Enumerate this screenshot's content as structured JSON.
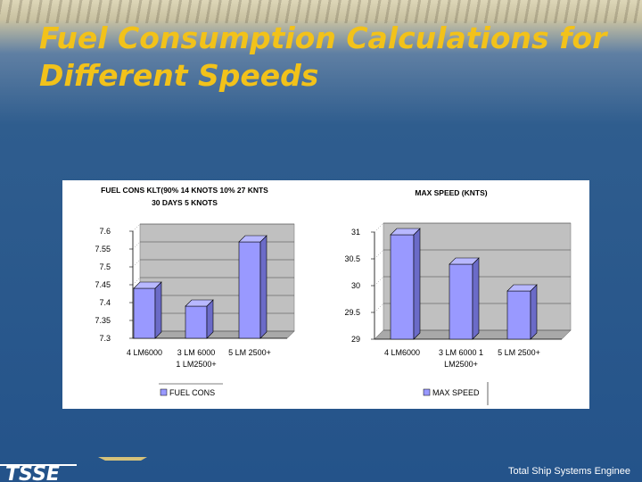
{
  "slide": {
    "title": "Fuel Consumption Calculations for\nDifferent Speeds",
    "footer": "Total Ship Systems Enginee",
    "logo_text": "TSSE"
  },
  "chart_data": [
    {
      "type": "bar",
      "title_line1": "FUEL CONS KLT(90% 14 KNOTS 10% 27 KNTS",
      "title_line2": "30 DAYS 5 KNOTS",
      "categories": [
        [
          "4 LM6000"
        ],
        [
          "3 LM 6000",
          "1 LM2500+"
        ],
        [
          "5 LM 2500+"
        ]
      ],
      "series": [
        {
          "name": "FUEL CONS",
          "values": [
            7.44,
            7.39,
            7.57
          ]
        }
      ],
      "yticks": [
        "7.3",
        "7.35",
        "7.4",
        "7.45",
        "7.5",
        "7.55",
        "7.6"
      ],
      "ylim": [
        7.3,
        7.6
      ],
      "grid": true,
      "legend": "bottom",
      "bar_color": "#9999ff"
    },
    {
      "type": "bar",
      "title_line1": "MAX SPEED (KNTS)",
      "title_line2": "",
      "categories": [
        [
          "4 LM6000"
        ],
        [
          "3 LM 6000 1",
          "LM2500+"
        ],
        [
          "5 LM 2500+"
        ]
      ],
      "series": [
        {
          "name": "MAX SPEED",
          "values": [
            30.95,
            30.4,
            29.9
          ]
        }
      ],
      "yticks": [
        "29",
        "29.5",
        "30",
        "30.5",
        "31"
      ],
      "ylim": [
        29,
        31
      ],
      "grid": true,
      "legend": "bottom",
      "bar_color": "#9999ff"
    }
  ]
}
